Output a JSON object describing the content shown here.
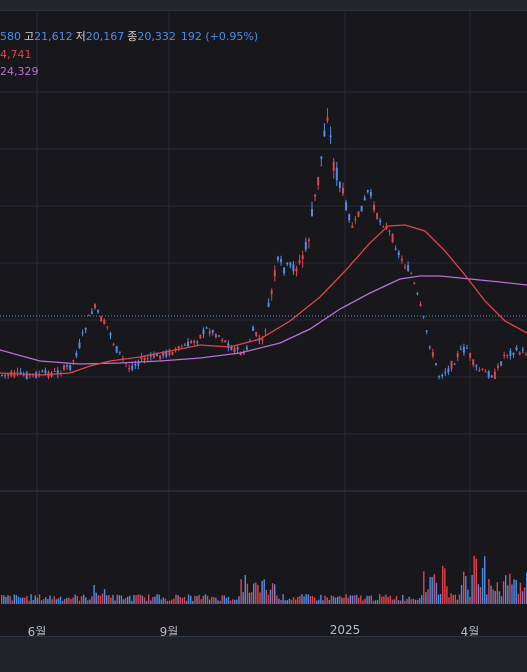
{
  "legend": {
    "open_label": "",
    "open_value": "580",
    "high_label": "고",
    "high_value": "21,612",
    "low_label": "저",
    "low_value": "20,167",
    "close_label": "종",
    "close_value": "20,332",
    "change": "192 (+0.95%)",
    "ma1_value": "4,741",
    "ma2_value": "24,329"
  },
  "colors": {
    "up": "#e0454a",
    "down": "#4d8ee8",
    "ma1": "#e0454a",
    "ma2": "#b772d4",
    "current_line": "#4d8ee8",
    "grid": "#2a2b32"
  },
  "chart_data": {
    "type": "candlestick",
    "title": "",
    "xlabel": "",
    "ylabel": "",
    "x_ticks": [
      "6월",
      "9월",
      "2025",
      "4월"
    ],
    "grid": true,
    "legend_placement": "top-left",
    "series": [
      {
        "name": "",
        "kind": "ma",
        "values_desc": "ma1"
      },
      {
        "name": "",
        "kind": "ma",
        "values_desc": "ma2"
      }
    ]
  }
}
